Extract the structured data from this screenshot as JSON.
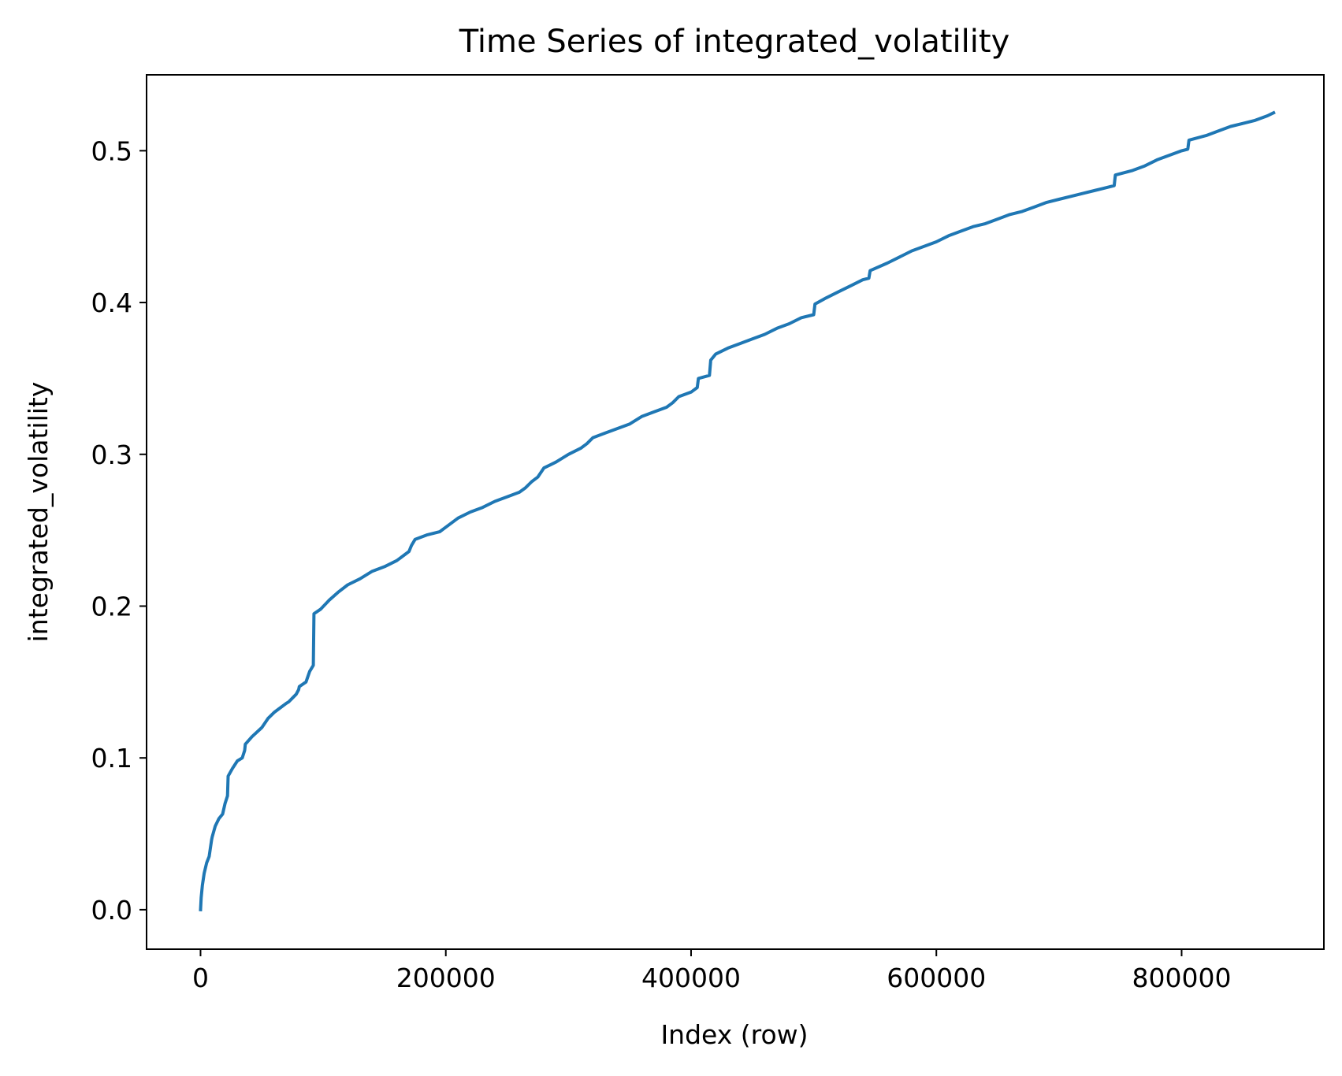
{
  "chart_data": {
    "type": "line",
    "title": "Time Series of integrated_volatility",
    "xlabel": "Index (row)",
    "ylabel": "integrated_volatility",
    "xlim": [
      -44000,
      916000
    ],
    "ylim": [
      -0.026,
      0.55
    ],
    "x_ticks": [
      {
        "value": 0,
        "label": "0"
      },
      {
        "value": 200000,
        "label": "200000"
      },
      {
        "value": 400000,
        "label": "400000"
      },
      {
        "value": 600000,
        "label": "600000"
      },
      {
        "value": 800000,
        "label": "800000"
      }
    ],
    "y_ticks": [
      {
        "value": 0.0,
        "label": "0.0"
      },
      {
        "value": 0.1,
        "label": "0.1"
      },
      {
        "value": 0.2,
        "label": "0.2"
      },
      {
        "value": 0.3,
        "label": "0.3"
      },
      {
        "value": 0.4,
        "label": "0.4"
      },
      {
        "value": 0.5,
        "label": "0.5"
      }
    ],
    "grid": false,
    "legend": false,
    "series": [
      {
        "color": "#1f77b4",
        "x": [
          0,
          500,
          1500,
          3000,
          5000,
          7000,
          9000,
          9500,
          12000,
          15000,
          18000,
          20000,
          22000,
          22500,
          26000,
          30000,
          34000,
          36000,
          36500,
          42000,
          50000,
          55000,
          60000,
          65000,
          70000,
          72000,
          78000,
          80000,
          80500,
          86000,
          89000,
          92000,
          92500,
          98000,
          105000,
          112000,
          120000,
          130000,
          140000,
          150000,
          160000,
          165000,
          170000,
          172000,
          175000,
          185000,
          195000,
          200000,
          210000,
          220000,
          230000,
          240000,
          250000,
          260000,
          265000,
          270000,
          275000,
          280000,
          285000,
          290000,
          300000,
          310000,
          315000,
          320000,
          330000,
          340000,
          350000,
          360000,
          370000,
          380000,
          385000,
          390000,
          400000,
          405000,
          406000,
          415000,
          416000,
          420000,
          430000,
          440000,
          450000,
          460000,
          470000,
          480000,
          490000,
          500000,
          501000,
          510000,
          520000,
          530000,
          540000,
          545000,
          546000,
          560000,
          570000,
          580000,
          590000,
          600000,
          610000,
          620000,
          630000,
          640000,
          650000,
          660000,
          670000,
          680000,
          690000,
          700000,
          710000,
          720000,
          730000,
          745000,
          746000,
          760000,
          770000,
          780000,
          790000,
          800000,
          805000,
          806000,
          820000,
          830000,
          840000,
          850000,
          860000,
          870000,
          875000
        ],
        "y": [
          0.0,
          0.008,
          0.016,
          0.024,
          0.031,
          0.035,
          0.046,
          0.048,
          0.055,
          0.06,
          0.063,
          0.07,
          0.075,
          0.088,
          0.093,
          0.098,
          0.1,
          0.105,
          0.109,
          0.114,
          0.12,
          0.126,
          0.13,
          0.133,
          0.136,
          0.137,
          0.142,
          0.145,
          0.147,
          0.15,
          0.157,
          0.161,
          0.195,
          0.198,
          0.204,
          0.209,
          0.214,
          0.218,
          0.223,
          0.226,
          0.23,
          0.233,
          0.236,
          0.24,
          0.244,
          0.247,
          0.249,
          0.252,
          0.258,
          0.262,
          0.265,
          0.269,
          0.272,
          0.275,
          0.278,
          0.282,
          0.285,
          0.291,
          0.293,
          0.295,
          0.3,
          0.304,
          0.307,
          0.311,
          0.314,
          0.317,
          0.32,
          0.325,
          0.328,
          0.331,
          0.334,
          0.338,
          0.341,
          0.344,
          0.35,
          0.352,
          0.362,
          0.366,
          0.37,
          0.373,
          0.376,
          0.379,
          0.383,
          0.386,
          0.39,
          0.392,
          0.399,
          0.403,
          0.407,
          0.411,
          0.415,
          0.416,
          0.421,
          0.426,
          0.43,
          0.434,
          0.437,
          0.44,
          0.444,
          0.447,
          0.45,
          0.452,
          0.455,
          0.458,
          0.46,
          0.463,
          0.466,
          0.468,
          0.47,
          0.472,
          0.474,
          0.477,
          0.484,
          0.487,
          0.49,
          0.494,
          0.497,
          0.5,
          0.501,
          0.507,
          0.51,
          0.513,
          0.516,
          0.518,
          0.52,
          0.523,
          0.525
        ]
      }
    ]
  }
}
